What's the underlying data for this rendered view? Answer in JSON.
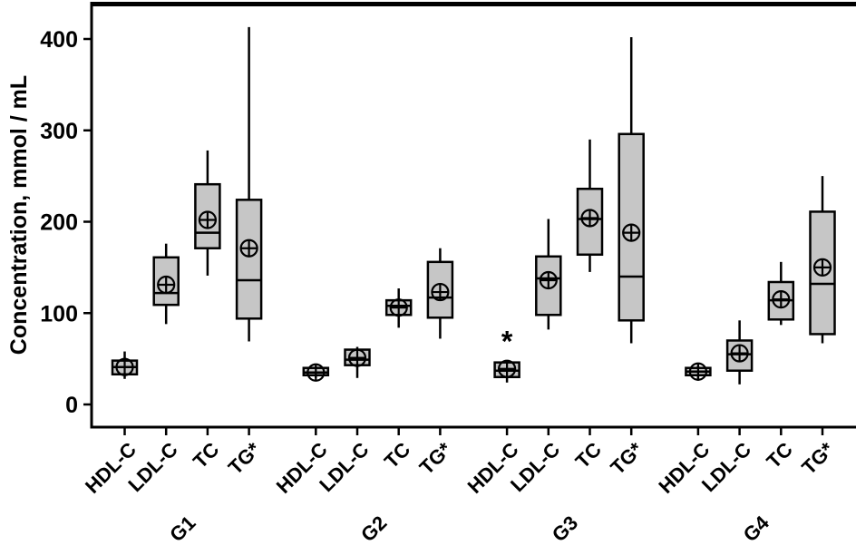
{
  "chart_data": {
    "type": "boxplot",
    "title": "",
    "ylabel": "Concentration, mmol / mL",
    "xlabel": "",
    "ylim": [
      0,
      430
    ],
    "yticks": [
      0,
      100,
      200,
      300,
      400
    ],
    "grid": false,
    "legend": false,
    "groups": [
      "G1",
      "G2",
      "G3",
      "G4"
    ],
    "categories": [
      "HDL-C",
      "LDL-C",
      "TC",
      "TG*"
    ],
    "colors": {
      "box_fill": "#c6c6c6",
      "line": "#000000",
      "background": "#ffffff"
    },
    "mean_marker": "circle-plus",
    "outlier_marker": "*",
    "series": [
      {
        "group": "G1",
        "category": "HDL-C",
        "low": 28,
        "q1": 33,
        "median": 41,
        "q3": 48,
        "high": 58,
        "mean": 41,
        "outliers": []
      },
      {
        "group": "G1",
        "category": "LDL-C",
        "low": 88,
        "q1": 109,
        "median": 122,
        "q3": 161,
        "high": 176,
        "mean": 131,
        "outliers": []
      },
      {
        "group": "G1",
        "category": "TC",
        "low": 141,
        "q1": 171,
        "median": 188,
        "q3": 241,
        "high": 278,
        "mean": 202,
        "outliers": []
      },
      {
        "group": "G1",
        "category": "TG*",
        "low": 69,
        "q1": 94,
        "median": 136,
        "q3": 224,
        "high": 413,
        "mean": 171,
        "outliers": []
      },
      {
        "group": "G2",
        "category": "HDL-C",
        "low": 29,
        "q1": 32,
        "median": 35,
        "q3": 40,
        "high": 42,
        "mean": 35,
        "outliers": []
      },
      {
        "group": "G2",
        "category": "LDL-C",
        "low": 29,
        "q1": 43,
        "median": 49,
        "q3": 60,
        "high": 63,
        "mean": 51,
        "outliers": []
      },
      {
        "group": "G2",
        "category": "TC",
        "low": 84,
        "q1": 98,
        "median": 108,
        "q3": 114,
        "high": 127,
        "mean": 106,
        "outliers": []
      },
      {
        "group": "G2",
        "category": "TG*",
        "low": 72,
        "q1": 95,
        "median": 117,
        "q3": 156,
        "high": 171,
        "mean": 123,
        "outliers": []
      },
      {
        "group": "G3",
        "category": "HDL-C",
        "low": 24,
        "q1": 30,
        "median": 37,
        "q3": 46,
        "high": 48,
        "mean": 39,
        "outliers": [
          69
        ]
      },
      {
        "group": "G3",
        "category": "LDL-C",
        "low": 82,
        "q1": 98,
        "median": 138,
        "q3": 162,
        "high": 203,
        "mean": 136,
        "outliers": []
      },
      {
        "group": "G3",
        "category": "TC",
        "low": 145,
        "q1": 164,
        "median": 203,
        "q3": 236,
        "high": 290,
        "mean": 204,
        "outliers": []
      },
      {
        "group": "G3",
        "category": "TG*",
        "low": 67,
        "q1": 92,
        "median": 140,
        "q3": 296,
        "high": 402,
        "mean": 188,
        "outliers": []
      },
      {
        "group": "G4",
        "category": "HDL-C",
        "low": 26,
        "q1": 32,
        "median": 36,
        "q3": 40,
        "high": 43,
        "mean": 36,
        "outliers": []
      },
      {
        "group": "G4",
        "category": "LDL-C",
        "low": 22,
        "q1": 37,
        "median": 55,
        "q3": 70,
        "high": 92,
        "mean": 56,
        "outliers": []
      },
      {
        "group": "G4",
        "category": "TC",
        "low": 87,
        "q1": 93,
        "median": 114,
        "q3": 134,
        "high": 156,
        "mean": 115,
        "outliers": []
      },
      {
        "group": "G4",
        "category": "TG*",
        "low": 67,
        "q1": 77,
        "median": 132,
        "q3": 211,
        "high": 250,
        "mean": 150,
        "outliers": []
      }
    ]
  }
}
